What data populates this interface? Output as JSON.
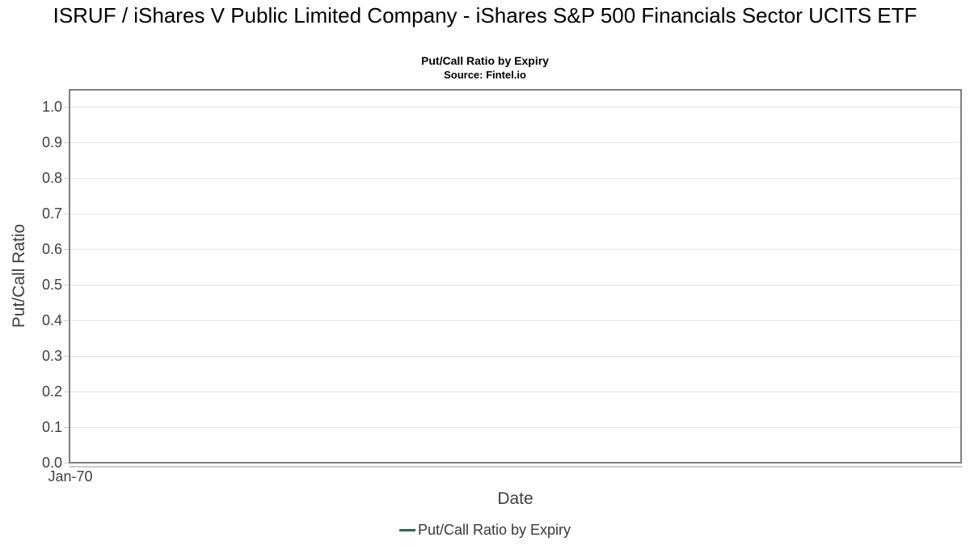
{
  "chart_data": {
    "type": "line",
    "title": "ISRUF / iShares V Public Limited Company - iShares S&P 500 Financials Sector UCITS ETF",
    "subtitle": "Put/Call Ratio by Expiry",
    "source": "Source: Fintel.io",
    "xlabel": "Date",
    "ylabel": "Put/Call Ratio",
    "x_tick_labels": [
      "Jan-70"
    ],
    "y_tick_labels": [
      "0.0",
      "0.1",
      "0.2",
      "0.3",
      "0.4",
      "0.5",
      "0.6",
      "0.7",
      "0.8",
      "0.9",
      "1.0"
    ],
    "ylim": [
      0.0,
      1.047
    ],
    "grid": true,
    "legend_position": "bottom-center",
    "series": [
      {
        "name": "Put/Call Ratio by Expiry",
        "color": "#2d6b3f",
        "x": [],
        "y": []
      }
    ]
  },
  "colors": {
    "background": "#ffffff",
    "plot_border": "#7e7e7e",
    "gridline": "#e7e7e7",
    "tick_mark": "#cfcfcf",
    "axis_line": "#cccccc",
    "tick_label": "#3f3f3f",
    "axis_title": "#3f3f3f",
    "title_text": "#000000",
    "legend_text": "#383838",
    "series_green": "#2d6b3f"
  }
}
